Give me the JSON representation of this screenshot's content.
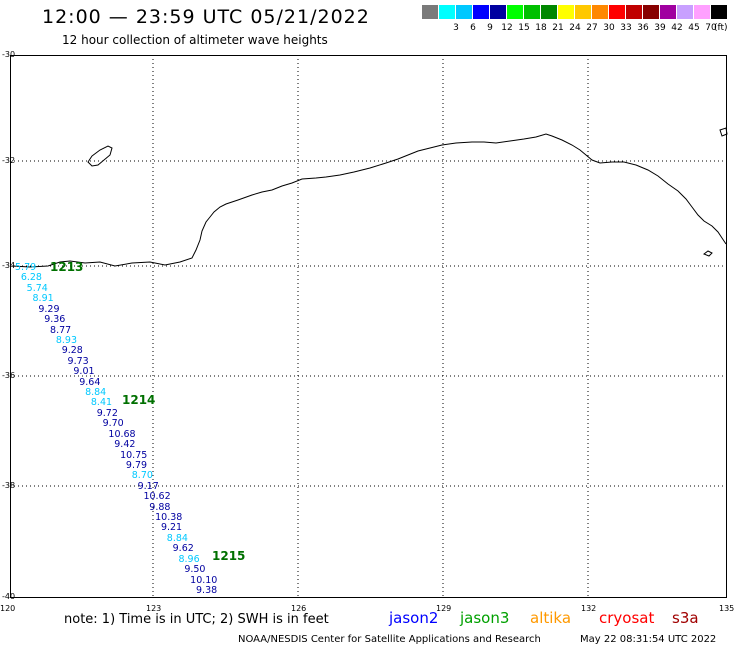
{
  "title": "12:00 — 23:59 UTC 05/21/2022",
  "subtitle": "12 hour collection of altimeter wave heights",
  "legend": {
    "unit": "(ft)",
    "items": [
      {
        "label": "",
        "color": "#7a7a7a"
      },
      {
        "label": "3",
        "color": "#00ffff"
      },
      {
        "label": "6",
        "color": "#00c8ff"
      },
      {
        "label": "9",
        "color": "#0000ff"
      },
      {
        "label": "12",
        "color": "#0000a0"
      },
      {
        "label": "15",
        "color": "#00ff00"
      },
      {
        "label": "18",
        "color": "#00c000"
      },
      {
        "label": "21",
        "color": "#008800"
      },
      {
        "label": "24",
        "color": "#ffff00"
      },
      {
        "label": "27",
        "color": "#ffc800"
      },
      {
        "label": "30",
        "color": "#ff8800"
      },
      {
        "label": "33",
        "color": "#ff0000"
      },
      {
        "label": "36",
        "color": "#c00000"
      },
      {
        "label": "39",
        "color": "#880000"
      },
      {
        "label": "42",
        "color": "#a000a0"
      },
      {
        "label": "45",
        "color": "#c8a0ff"
      },
      {
        "label": "70",
        "color": "#ffa0ff"
      },
      {
        "label": "",
        "color": "#000000"
      }
    ]
  },
  "map": {
    "lat_labels": [
      "-30",
      "-32",
      "-34",
      "-36",
      "-38",
      "-40"
    ],
    "lon_labels": [
      "120",
      "123",
      "126",
      "129",
      "132",
      "135"
    ],
    "pass_times": [
      "1213",
      "1214",
      "1215"
    ],
    "wave_heights": [
      {
        "value": "5.79",
        "color": "#00c8ff"
      },
      {
        "value": "6.28",
        "color": "#00c8ff"
      },
      {
        "value": "5.74",
        "color": "#00c8ff"
      },
      {
        "value": "8.91",
        "color": "#00c8ff"
      },
      {
        "value": "9.29",
        "color": "#0000a0"
      },
      {
        "value": "9.36",
        "color": "#0000a0"
      },
      {
        "value": "8.77",
        "color": "#0000a0"
      },
      {
        "value": "8.93",
        "color": "#00c8ff"
      },
      {
        "value": "9.28",
        "color": "#0000a0"
      },
      {
        "value": "9.73",
        "color": "#0000a0"
      },
      {
        "value": "9.01",
        "color": "#0000a0"
      },
      {
        "value": "9.64",
        "color": "#0000a0"
      },
      {
        "value": "8.84",
        "color": "#00c8ff"
      },
      {
        "value": "8.41",
        "color": "#00c8ff"
      },
      {
        "value": "9.72",
        "color": "#0000a0"
      },
      {
        "value": "9.70",
        "color": "#0000a0"
      },
      {
        "value": "10.68",
        "color": "#0000a0"
      },
      {
        "value": "9.42",
        "color": "#0000a0"
      },
      {
        "value": "10.75",
        "color": "#0000a0"
      },
      {
        "value": "9.79",
        "color": "#0000a0"
      },
      {
        "value": "8.70",
        "color": "#00c8ff"
      },
      {
        "value": "9.17",
        "color": "#0000a0"
      },
      {
        "value": "10.62",
        "color": "#0000a0"
      },
      {
        "value": "9.88",
        "color": "#0000a0"
      },
      {
        "value": "10.38",
        "color": "#0000a0"
      },
      {
        "value": "9.21",
        "color": "#0000a0"
      },
      {
        "value": "8.84",
        "color": "#00c8ff"
      },
      {
        "value": "9.62",
        "color": "#0000a0"
      },
      {
        "value": "8.96",
        "color": "#00c8ff"
      },
      {
        "value": "9.50",
        "color": "#0000a0"
      },
      {
        "value": "10.10",
        "color": "#0000a0"
      },
      {
        "value": "9.38",
        "color": "#0000a0"
      }
    ]
  },
  "note": "note:  1) Time is in UTC;  2) SWH is in feet",
  "satellites": [
    {
      "name": "jason2",
      "color": "#0000ff"
    },
    {
      "name": "jason3",
      "color": "#00a000"
    },
    {
      "name": "altika",
      "color": "#ff9900"
    },
    {
      "name": "cryosat",
      "color": "#ff0000"
    },
    {
      "name": "s3a",
      "color": "#a00000"
    }
  ],
  "credit": "NOAA/NESDIS Center for Satellite Applications and Research",
  "timestamp": "May 22 08:31:54 UTC 2022"
}
